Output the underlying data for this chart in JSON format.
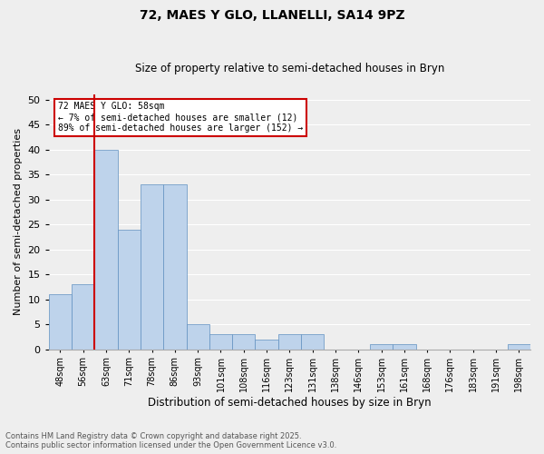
{
  "title": "72, MAES Y GLO, LLANELLI, SA14 9PZ",
  "subtitle": "Size of property relative to semi-detached houses in Bryn",
  "xlabel": "Distribution of semi-detached houses by size in Bryn",
  "ylabel": "Number of semi-detached properties",
  "annotation_title": "72 MAES Y GLO: 58sqm",
  "annotation_line1": "← 7% of semi-detached houses are smaller (12)",
  "annotation_line2": "89% of semi-detached houses are larger (152) →",
  "footer_line1": "Contains HM Land Registry data © Crown copyright and database right 2025.",
  "footer_line2": "Contains public sector information licensed under the Open Government Licence v3.0.",
  "categories": [
    "48sqm",
    "56sqm",
    "63sqm",
    "71sqm",
    "78sqm",
    "86sqm",
    "93sqm",
    "101sqm",
    "108sqm",
    "116sqm",
    "123sqm",
    "131sqm",
    "138sqm",
    "146sqm",
    "153sqm",
    "161sqm",
    "168sqm",
    "176sqm",
    "183sqm",
    "191sqm",
    "198sqm"
  ],
  "values": [
    11,
    13,
    40,
    24,
    33,
    33,
    5,
    3,
    3,
    2,
    3,
    3,
    0,
    0,
    1,
    1,
    0,
    0,
    0,
    0,
    1
  ],
  "bar_color_normal": "#bed3eb",
  "annotation_box_color": "#cc0000",
  "ylim": [
    0,
    51
  ],
  "yticks": [
    0,
    5,
    10,
    15,
    20,
    25,
    30,
    35,
    40,
    45,
    50
  ],
  "background_color": "#eeeeee",
  "grid_color": "#ffffff"
}
